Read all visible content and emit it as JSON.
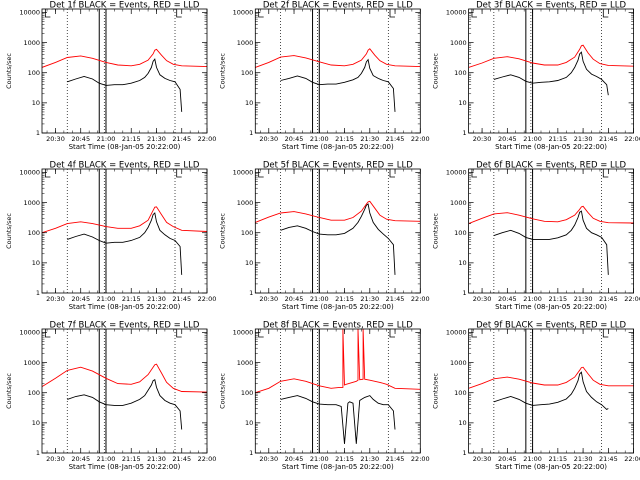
{
  "chart_data": {
    "type": "line",
    "layout": "3x3 grid of panels",
    "xlabel": "Start Time (08-Jan-05 20:22:00)",
    "ylabel": "Counts/sec",
    "x_ticks": [
      "20:30",
      "20:45",
      "21:00",
      "21:15",
      "21:30",
      "21:45",
      "22:00"
    ],
    "x_range": [
      "20:22",
      "22:00"
    ],
    "y_scale": "log",
    "y_range": [
      1,
      13000
    ],
    "y_ticks": [
      "1",
      "10",
      "100",
      "1000",
      "10000"
    ],
    "grid": false,
    "legend": "none",
    "colors": {
      "events": "#000000",
      "lld": "#ff0000",
      "markers": "#000000"
    },
    "dotted_vertical_lines": [
      "20:37",
      "20:59",
      "21:41"
    ],
    "solid_vertical_lines": [
      "20:56",
      "21:00"
    ],
    "corner_marks": [
      "20:24",
      "21:42"
    ],
    "series_names": [
      "BLACK = Events",
      "RED = LLD"
    ],
    "panels": [
      {
        "title": "Det 1f BLACK = Events, RED = LLD",
        "series": [
          {
            "color": "black",
            "x": [
              "20:37",
              "20:42",
              "20:47",
              "20:52",
              "20:56",
              "21:00",
              "21:05",
              "21:10",
              "21:15",
              "21:20",
              "21:23",
              "21:25",
              "21:27",
              "21:28",
              "21:29",
              "21:30",
              "21:32",
              "21:35",
              "21:38",
              "21:41",
              "21:44",
              "21:45"
            ],
            "y": [
              50,
              62,
              75,
              62,
              45,
              38,
              40,
              40,
              45,
              55,
              70,
              95,
              150,
              240,
              280,
              150,
              85,
              65,
              55,
              50,
              28,
              5
            ]
          },
          {
            "color": "red",
            "x": [
              "20:22",
              "20:30",
              "20:37",
              "20:45",
              "20:52",
              "21:00",
              "21:07",
              "21:15",
              "21:20",
              "21:25",
              "21:28",
              "21:29",
              "21:30",
              "21:33",
              "21:36",
              "21:40",
              "21:45",
              "22:00"
            ],
            "y": [
              150,
              220,
              320,
              360,
              300,
              220,
              180,
              170,
              190,
              260,
              420,
              560,
              600,
              380,
              250,
              190,
              170,
              160
            ]
          }
        ]
      },
      {
        "title": "Det 2f BLACK = Events, RED = LLD",
        "series": [
          {
            "color": "black",
            "x": [
              "20:37",
              "20:42",
              "20:47",
              "20:52",
              "20:56",
              "21:00",
              "21:05",
              "21:10",
              "21:15",
              "21:20",
              "21:23",
              "21:25",
              "21:27",
              "21:28",
              "21:29",
              "21:30",
              "21:32",
              "21:35",
              "21:38",
              "21:41",
              "21:44",
              "21:45"
            ],
            "y": [
              55,
              65,
              78,
              65,
              48,
              40,
              42,
              42,
              48,
              58,
              70,
              95,
              150,
              230,
              270,
              140,
              80,
              65,
              55,
              50,
              30,
              5
            ]
          },
          {
            "color": "red",
            "x": [
              "20:22",
              "20:30",
              "20:37",
              "20:45",
              "20:52",
              "21:00",
              "21:07",
              "21:15",
              "21:20",
              "21:25",
              "21:28",
              "21:29",
              "21:30",
              "21:33",
              "21:36",
              "21:40",
              "21:45",
              "22:00"
            ],
            "y": [
              150,
              220,
              330,
              370,
              310,
              230,
              180,
              170,
              190,
              260,
              420,
              560,
              620,
              380,
              250,
              190,
              170,
              160
            ]
          }
        ]
      },
      {
        "title": "Det 3f BLACK = Events, RED = LLD",
        "series": [
          {
            "color": "black",
            "x": [
              "20:37",
              "20:42",
              "20:47",
              "20:52",
              "20:56",
              "21:00",
              "21:05",
              "21:10",
              "21:15",
              "21:20",
              "21:23",
              "21:25",
              "21:27",
              "21:28",
              "21:29",
              "21:30",
              "21:32",
              "21:35",
              "21:38",
              "21:41",
              "21:44",
              "21:45"
            ],
            "y": [
              60,
              72,
              85,
              70,
              52,
              45,
              48,
              50,
              55,
              70,
              100,
              150,
              260,
              420,
              480,
              240,
              130,
              90,
              75,
              60,
              40,
              18
            ]
          },
          {
            "color": "red",
            "x": [
              "20:22",
              "20:30",
              "20:37",
              "20:45",
              "20:52",
              "21:00",
              "21:07",
              "21:15",
              "21:20",
              "21:25",
              "21:28",
              "21:29",
              "21:30",
              "21:33",
              "21:36",
              "21:40",
              "21:45",
              "22:00"
            ],
            "y": [
              150,
              210,
              300,
              340,
              290,
              210,
              180,
              180,
              220,
              330,
              600,
              780,
              820,
              450,
              280,
              200,
              175,
              165
            ]
          }
        ]
      },
      {
        "title": "Det 4f BLACK = Events, RED = LLD",
        "series": [
          {
            "color": "black",
            "x": [
              "20:37",
              "20:42",
              "20:47",
              "20:52",
              "20:56",
              "21:00",
              "21:05",
              "21:10",
              "21:15",
              "21:20",
              "21:23",
              "21:25",
              "21:27",
              "21:28",
              "21:29",
              "21:30",
              "21:32",
              "21:35",
              "21:38",
              "21:41",
              "21:44",
              "21:45"
            ],
            "y": [
              60,
              75,
              90,
              72,
              55,
              45,
              48,
              48,
              55,
              70,
              100,
              150,
              260,
              400,
              450,
              230,
              120,
              85,
              65,
              55,
              35,
              4
            ]
          },
          {
            "color": "red",
            "x": [
              "20:22",
              "20:30",
              "20:37",
              "20:45",
              "20:52",
              "21:00",
              "21:07",
              "21:15",
              "21:20",
              "21:25",
              "21:28",
              "21:29",
              "21:30",
              "21:33",
              "21:36",
              "21:40",
              "21:45",
              "22:00"
            ],
            "y": [
              100,
              140,
              200,
              230,
              200,
              160,
              140,
              140,
              170,
              260,
              550,
              700,
              720,
              400,
              220,
              160,
              120,
              110
            ]
          }
        ]
      },
      {
        "title": "Det 5f BLACK = Events, RED = LLD",
        "series": [
          {
            "color": "black",
            "x": [
              "20:37",
              "20:42",
              "20:47",
              "20:52",
              "20:56",
              "21:00",
              "21:05",
              "21:10",
              "21:15",
              "21:20",
              "21:23",
              "21:25",
              "21:27",
              "21:28",
              "21:29",
              "21:30",
              "21:32",
              "21:35",
              "21:38",
              "21:41",
              "21:44",
              "21:45"
            ],
            "y": [
              120,
              150,
              170,
              140,
              110,
              90,
              85,
              85,
              95,
              140,
              220,
              350,
              600,
              820,
              900,
              450,
              220,
              130,
              90,
              65,
              40,
              4
            ]
          },
          {
            "color": "red",
            "x": [
              "20:22",
              "20:30",
              "20:37",
              "20:45",
              "20:52",
              "21:00",
              "21:07",
              "21:15",
              "21:20",
              "21:25",
              "21:28",
              "21:29",
              "21:30",
              "21:33",
              "21:36",
              "21:40",
              "21:45",
              "22:00"
            ],
            "y": [
              220,
              330,
              450,
              500,
              420,
              320,
              260,
              260,
              320,
              520,
              900,
              1050,
              1100,
              650,
              380,
              280,
              250,
              240
            ]
          }
        ]
      },
      {
        "title": "Det 6f BLACK = Events, RED = LLD",
        "series": [
          {
            "color": "black",
            "x": [
              "20:37",
              "20:42",
              "20:47",
              "20:52",
              "20:56",
              "21:00",
              "21:05",
              "21:10",
              "21:15",
              "21:20",
              "21:23",
              "21:25",
              "21:27",
              "21:28",
              "21:29",
              "21:30",
              "21:32",
              "21:35",
              "21:38",
              "21:41",
              "21:44",
              "21:45"
            ],
            "y": [
              80,
              100,
              120,
              95,
              70,
              60,
              60,
              60,
              68,
              85,
              120,
              180,
              320,
              480,
              520,
              260,
              140,
              100,
              85,
              70,
              40,
              4
            ]
          },
          {
            "color": "red",
            "x": [
              "20:22",
              "20:30",
              "20:37",
              "20:45",
              "20:52",
              "21:00",
              "21:07",
              "21:15",
              "21:20",
              "21:25",
              "21:28",
              "21:29",
              "21:30",
              "21:33",
              "21:36",
              "21:40",
              "21:45",
              "22:00"
            ],
            "y": [
              200,
              300,
              420,
              460,
              380,
              290,
              240,
              230,
              270,
              380,
              600,
              720,
              750,
              460,
              300,
              240,
              215,
              210
            ]
          }
        ]
      },
      {
        "title": "Det 7f BLACK = Events, RED = LLD",
        "series": [
          {
            "color": "black",
            "x": [
              "20:37",
              "20:42",
              "20:47",
              "20:52",
              "20:56",
              "21:00",
              "21:05",
              "21:10",
              "21:15",
              "21:20",
              "21:23",
              "21:25",
              "21:27",
              "21:28",
              "21:29",
              "21:30",
              "21:32",
              "21:35",
              "21:38",
              "21:41",
              "21:44",
              "21:45"
            ],
            "y": [
              60,
              75,
              85,
              70,
              50,
              40,
              38,
              38,
              45,
              60,
              80,
              120,
              180,
              250,
              270,
              150,
              80,
              55,
              45,
              40,
              25,
              6
            ]
          },
          {
            "color": "red",
            "x": [
              "20:22",
              "20:30",
              "20:37",
              "20:45",
              "20:52",
              "21:00",
              "21:07",
              "21:15",
              "21:20",
              "21:25",
              "21:28",
              "21:29",
              "21:30",
              "21:33",
              "21:36",
              "21:40",
              "21:45",
              "22:00"
            ],
            "y": [
              160,
              300,
              550,
              700,
              520,
              300,
              200,
              190,
              230,
              400,
              700,
              850,
              880,
              450,
              220,
              140,
              110,
              105
            ]
          }
        ]
      },
      {
        "title": "Det 8f BLACK = Events, RED = LLD",
        "series": [
          {
            "color": "black",
            "x": [
              "20:37",
              "20:42",
              "20:47",
              "20:52",
              "20:56",
              "21:00",
              "21:05",
              "21:10",
              "21:13",
              "21:15",
              "21:17",
              "21:18",
              "21:20",
              "21:22",
              "21:24",
              "21:25",
              "21:27",
              "21:30",
              "21:32",
              "21:35",
              "21:38",
              "21:41",
              "21:44",
              "21:45"
            ],
            "y": [
              60,
              70,
              80,
              65,
              50,
              42,
              40,
              40,
              35,
              2,
              45,
              50,
              45,
              2,
              55,
              60,
              70,
              80,
              60,
              45,
              40,
              40,
              25,
              6
            ]
          },
          {
            "color": "red",
            "x": [
              "20:22",
              "20:30",
              "20:37",
              "20:45",
              "20:52",
              "21:00",
              "21:07",
              "21:12",
              "21:14",
              "21:14",
              "21:15",
              "21:16",
              "21:22",
              "21:23",
              "21:23",
              "21:24",
              "21:26",
              "21:26",
              "21:27",
              "21:30",
              "21:36",
              "21:40",
              "21:45",
              "22:00"
            ],
            "y": [
              100,
              140,
              240,
              290,
              240,
              170,
              140,
              150,
              150,
              13000,
              180,
              190,
              240,
              260,
              13000,
              270,
              280,
              13000,
              280,
              260,
              220,
              190,
              140,
              130
            ]
          }
        ]
      },
      {
        "title": "Det 9f BLACK = Events, RED = LLD",
        "series": [
          {
            "color": "black",
            "x": [
              "20:37",
              "20:42",
              "20:47",
              "20:52",
              "20:56",
              "21:00",
              "21:05",
              "21:10",
              "21:15",
              "21:20",
              "21:23",
              "21:25",
              "21:27",
              "21:28",
              "21:29",
              "21:30",
              "21:32",
              "21:35",
              "21:38",
              "21:41",
              "21:44",
              "21:45"
            ],
            "y": [
              50,
              62,
              75,
              60,
              45,
              38,
              40,
              42,
              48,
              62,
              90,
              140,
              250,
              420,
              480,
              230,
              110,
              70,
              50,
              40,
              28,
              30
            ]
          },
          {
            "color": "red",
            "x": [
              "20:22",
              "20:30",
              "20:37",
              "20:45",
              "20:52",
              "21:00",
              "21:07",
              "21:15",
              "21:20",
              "21:25",
              "21:28",
              "21:29",
              "21:30",
              "21:33",
              "21:36",
              "21:40",
              "21:45",
              "22:00"
            ],
            "y": [
              140,
              200,
              290,
              330,
              280,
              210,
              180,
              180,
              220,
              330,
              560,
              680,
              700,
              420,
              260,
              190,
              170,
              170
            ]
          }
        ]
      }
    ]
  }
}
